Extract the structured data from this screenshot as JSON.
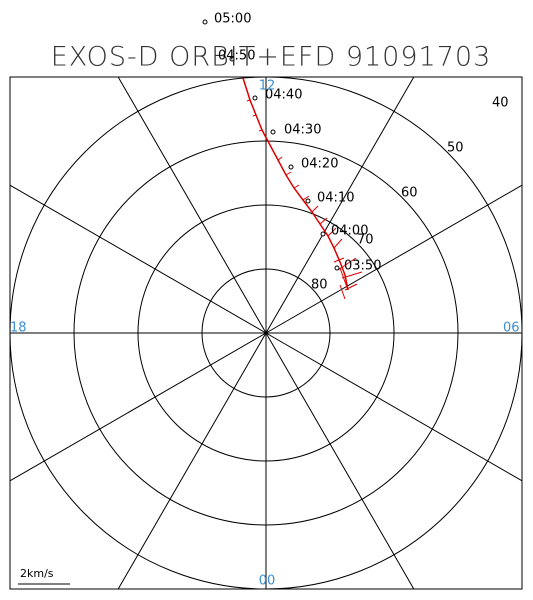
{
  "title": "EXOS-D ORBIT+EFD 91091703",
  "time_labels": [
    "05:00",
    "04:50",
    "04:40",
    "04:30",
    "04:20",
    "04:10",
    "04:00",
    "03:50"
  ],
  "latitude_labels": [
    "80",
    "70",
    "60",
    "50",
    "40"
  ],
  "mlt_labels": {
    "top": "12",
    "left": "18",
    "right": "06",
    "bottom": "00"
  },
  "scale_label": "2km/s"
}
